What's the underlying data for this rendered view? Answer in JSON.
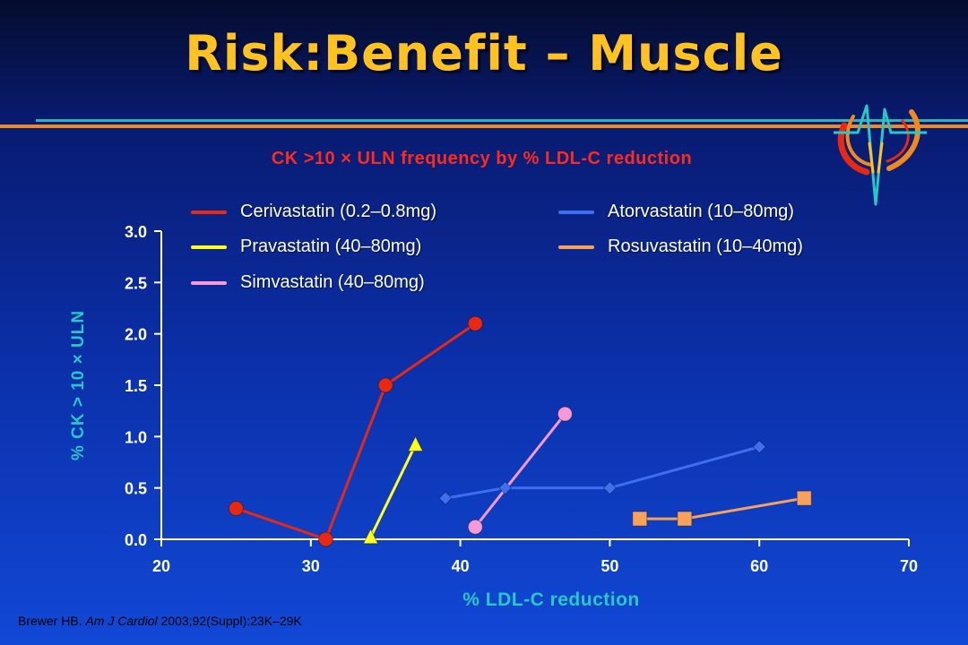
{
  "slide": {
    "title": "Risk:Benefit – Muscle",
    "citation_author": "Brewer HB.",
    "citation_journal": "Am J Cardiol",
    "citation_rest": "2003;92(Suppl):23K–29K"
  },
  "chart_data": {
    "type": "line",
    "title": "CK >10 × ULN frequency by % LDL-C reduction",
    "xlabel": "% LDL-C reduction",
    "ylabel": "% CK > 10 × ULN",
    "xlim": [
      20,
      70
    ],
    "ylim": [
      0,
      3
    ],
    "x_ticks": [
      "20",
      "30",
      "40",
      "50",
      "60",
      "70"
    ],
    "y_ticks": [
      "0.0",
      "0.5",
      "1.0",
      "1.5",
      "2.0",
      "2.5",
      "3.0"
    ],
    "grid": false,
    "legend_position": "top",
    "series": [
      {
        "name": "Cerivastatin (0.2–0.8mg)",
        "color": "#e8290f",
        "marker": "circle",
        "points": [
          {
            "x": 25,
            "y": 0.3
          },
          {
            "x": 31,
            "y": 0.0
          },
          {
            "x": 35,
            "y": 1.5
          },
          {
            "x": 41,
            "y": 2.1
          }
        ]
      },
      {
        "name": "Pravastatin (40–80mg)",
        "color": "#ffff1a",
        "marker": "triangle",
        "points": [
          {
            "x": 34,
            "y": 0.02
          },
          {
            "x": 37,
            "y": 0.92
          }
        ]
      },
      {
        "name": "Simvastatin (40–80mg)",
        "color": "#f59ad6",
        "marker": "circle",
        "points": [
          {
            "x": 41,
            "y": 0.12
          },
          {
            "x": 47,
            "y": 1.22
          }
        ]
      },
      {
        "name": "Atorvastatin (10–80mg)",
        "color": "#3f6ff0",
        "marker": "diamond",
        "points": [
          {
            "x": 39,
            "y": 0.4
          },
          {
            "x": 43,
            "y": 0.5
          },
          {
            "x": 50,
            "y": 0.5
          },
          {
            "x": 60,
            "y": 0.9
          }
        ]
      },
      {
        "name": "Rosuvastatin (10–40mg)",
        "color": "#f7a15a",
        "marker": "square",
        "points": [
          {
            "x": 52,
            "y": 0.2
          },
          {
            "x": 55,
            "y": 0.2
          },
          {
            "x": 63,
            "y": 0.4
          }
        ]
      }
    ]
  }
}
